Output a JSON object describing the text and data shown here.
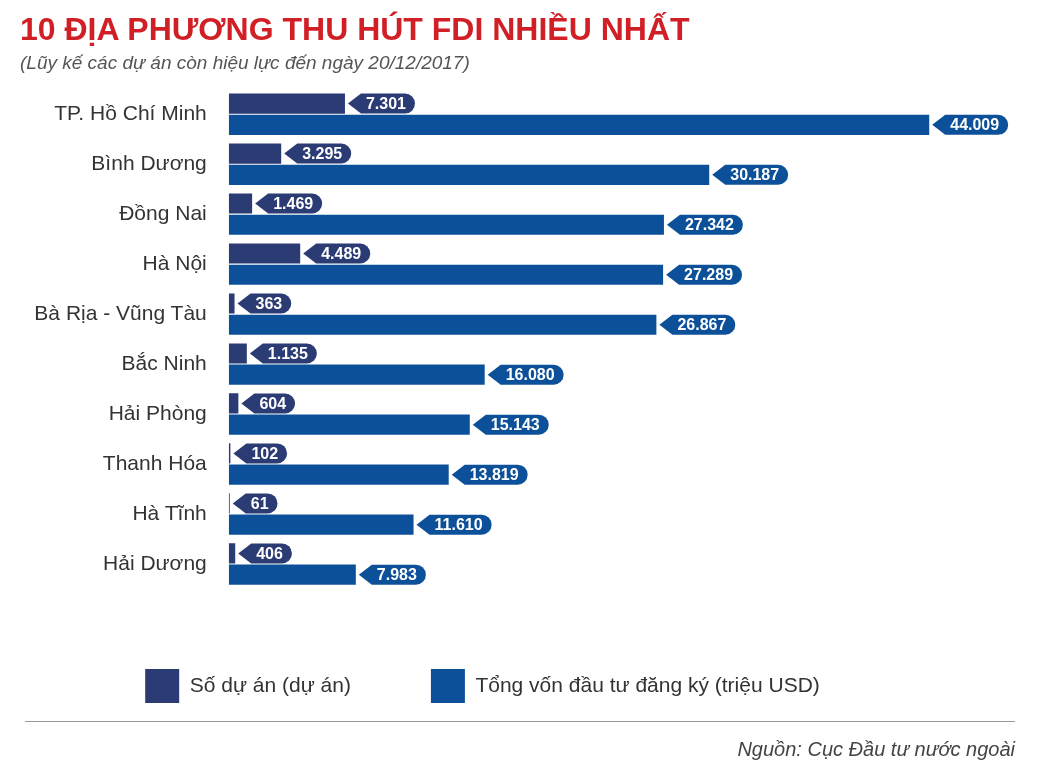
{
  "chart_data": {
    "type": "bar",
    "orientation": "horizontal",
    "title": "10 ĐỊA PHƯƠNG THU HÚT FDI NHIỀU NHẤT",
    "subtitle": "(Lũy kế các dự án còn hiệu lực đến ngày 20/12/2017)",
    "categories": [
      "TP. Hồ Chí Minh",
      "Bình Dương",
      "Đồng Nai",
      "Hà Nội",
      "Bà Rịa - Vũng Tàu",
      "Bắc Ninh",
      "Hải Phòng",
      "Thanh Hóa",
      "Hà Tĩnh",
      "Hải Dương"
    ],
    "series": [
      {
        "name": "Số dự án (dự án)",
        "color": "#2b3b73",
        "values": [
          7301,
          3295,
          1469,
          4489,
          363,
          1135,
          604,
          102,
          61,
          406
        ],
        "value_labels": [
          "7.301",
          "3.295",
          "1.469",
          "4.489",
          "363",
          "1.135",
          "604",
          "102",
          "61",
          "406"
        ]
      },
      {
        "name": "Tổng vốn đầu tư đăng ký (triệu USD)",
        "color": "#0b5098",
        "values": [
          44009,
          30187,
          27342,
          27289,
          26867,
          16080,
          15143,
          13819,
          11610,
          7983
        ],
        "value_labels": [
          "44.009",
          "30.187",
          "27.342",
          "27.289",
          "26.867",
          "16.080",
          "15.143",
          "13.819",
          "11.610",
          "7.983"
        ]
      }
    ],
    "tick_labels": "y",
    "grid": false,
    "legend": "bottom",
    "annotations": [
      "Nguồn: Cục Đầu tư nước ngoài"
    ]
  }
}
